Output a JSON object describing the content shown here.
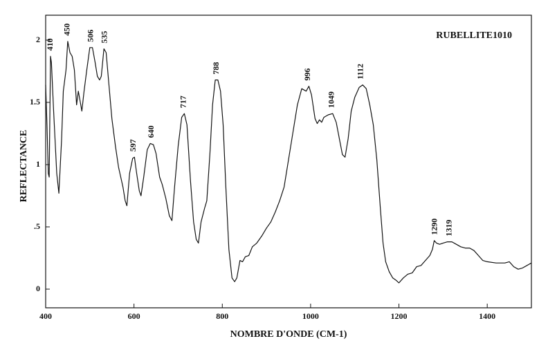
{
  "chart_data": {
    "type": "line",
    "title": "RUBELLITE1010",
    "x_label": "NOMBRE D'ONDE (CM-1)",
    "y_label": "REFLECTANCE",
    "color": "#111111",
    "xlim": [
      400,
      1500
    ],
    "xticks": [
      400,
      600,
      800,
      1000,
      1200,
      1400
    ],
    "ylim": [
      -0.15,
      2.2
    ],
    "yticks": [
      0,
      {
        "value": 0.5,
        "label": ".5"
      },
      1,
      1.5,
      2
    ],
    "x": [
      400,
      403,
      406,
      408,
      411,
      413,
      418,
      425,
      430,
      436,
      440,
      446,
      450,
      455,
      460,
      465,
      470,
      474,
      478,
      482,
      487,
      493,
      500,
      506,
      512,
      517,
      522,
      526,
      532,
      537,
      543,
      550,
      558,
      565,
      575,
      580,
      584,
      590,
      597,
      601,
      606,
      612,
      616,
      622,
      630,
      637,
      644,
      650,
      658,
      664,
      672,
      680,
      686,
      692,
      700,
      708,
      714,
      720,
      728,
      735,
      741,
      746,
      752,
      760,
      765,
      772,
      778,
      784,
      790,
      796,
      802,
      808,
      815,
      822,
      828,
      833,
      840,
      846,
      852,
      860,
      868,
      878,
      890,
      900,
      910,
      920,
      930,
      940,
      950,
      960,
      970,
      980,
      990,
      996,
      1002,
      1010,
      1015,
      1020,
      1025,
      1030,
      1040,
      1050,
      1058,
      1065,
      1072,
      1078,
      1085,
      1092,
      1100,
      1110,
      1118,
      1126,
      1134,
      1142,
      1150,
      1158,
      1164,
      1170,
      1178,
      1186,
      1194,
      1200,
      1210,
      1220,
      1230,
      1240,
      1250,
      1260,
      1270,
      1276,
      1280,
      1285,
      1292,
      1300,
      1310,
      1320,
      1330,
      1340,
      1350,
      1360,
      1370,
      1380,
      1390,
      1400,
      1420,
      1440,
      1450,
      1460,
      1470,
      1480,
      1490,
      1500
    ],
    "values": [
      1.64,
      1.32,
      0.93,
      0.9,
      1.87,
      1.82,
      1.43,
      0.93,
      0.77,
      1.2,
      1.59,
      1.76,
      1.99,
      1.9,
      1.87,
      1.76,
      1.48,
      1.59,
      1.51,
      1.43,
      1.59,
      1.76,
      1.94,
      1.94,
      1.82,
      1.71,
      1.68,
      1.71,
      1.93,
      1.9,
      1.65,
      1.37,
      1.15,
      0.98,
      0.82,
      0.71,
      0.67,
      0.93,
      1.05,
      1.06,
      0.93,
      0.79,
      0.75,
      0.9,
      1.12,
      1.17,
      1.16,
      1.09,
      0.9,
      0.84,
      0.73,
      0.59,
      0.55,
      0.82,
      1.15,
      1.38,
      1.41,
      1.32,
      0.87,
      0.54,
      0.4,
      0.37,
      0.54,
      0.65,
      0.71,
      1.09,
      1.48,
      1.68,
      1.68,
      1.59,
      1.32,
      0.82,
      0.32,
      0.09,
      0.06,
      0.09,
      0.23,
      0.22,
      0.26,
      0.27,
      0.34,
      0.37,
      0.43,
      0.49,
      0.54,
      0.62,
      0.71,
      0.82,
      1.04,
      1.26,
      1.48,
      1.61,
      1.59,
      1.63,
      1.56,
      1.37,
      1.33,
      1.36,
      1.34,
      1.38,
      1.4,
      1.41,
      1.34,
      1.21,
      1.08,
      1.06,
      1.21,
      1.43,
      1.54,
      1.62,
      1.64,
      1.61,
      1.48,
      1.32,
      1.04,
      0.65,
      0.37,
      0.22,
      0.14,
      0.09,
      0.07,
      0.05,
      0.09,
      0.12,
      0.13,
      0.18,
      0.19,
      0.23,
      0.27,
      0.32,
      0.39,
      0.37,
      0.36,
      0.37,
      0.38,
      0.38,
      0.36,
      0.34,
      0.33,
      0.33,
      0.31,
      0.27,
      0.23,
      0.22,
      0.21,
      0.21,
      0.22,
      0.18,
      0.16,
      0.17,
      0.19,
      0.21
    ],
    "annotations": [
      {
        "text": "410",
        "x": 411,
        "y": 1.87
      },
      {
        "text": "450",
        "x": 450,
        "y": 1.99
      },
      {
        "text": "506",
        "x": 503,
        "y": 1.94
      },
      {
        "text": "535",
        "x": 534,
        "y": 1.93
      },
      {
        "text": "597",
        "x": 599,
        "y": 1.06
      },
      {
        "text": "640",
        "x": 640,
        "y": 1.17
      },
      {
        "text": "717",
        "x": 713,
        "y": 1.41
      },
      {
        "text": "788",
        "x": 787,
        "y": 1.68
      },
      {
        "text": "996",
        "x": 994,
        "y": 1.63
      },
      {
        "text": "1049",
        "x": 1048,
        "y": 1.41
      },
      {
        "text": "1112",
        "x": 1114,
        "y": 1.64
      },
      {
        "text": "1290",
        "x": 1282,
        "y": 0.39
      },
      {
        "text": "1319",
        "x": 1315,
        "y": 0.38
      }
    ]
  }
}
